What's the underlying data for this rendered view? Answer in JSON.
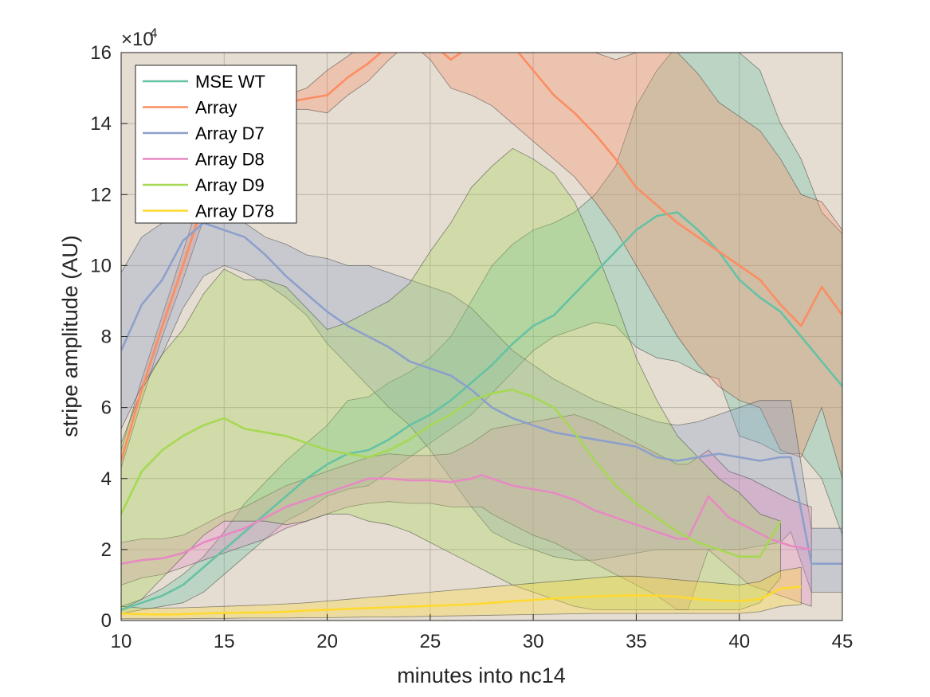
{
  "chart_data": {
    "type": "area",
    "xlabel": "minutes into nc14",
    "ylabel": "stripe amplitude (AU)",
    "xlim": [
      10,
      45
    ],
    "ylim": [
      0,
      160000
    ],
    "xticks": [
      10,
      15,
      20,
      25,
      30,
      35,
      40,
      45
    ],
    "yticks": [
      0,
      20000,
      40000,
      60000,
      80000,
      100000,
      120000,
      140000,
      160000
    ],
    "ytick_labels": [
      "0",
      "2",
      "4",
      "6",
      "8",
      "10",
      "12",
      "14",
      "16"
    ],
    "y_exponent_label": "×10",
    "y_exponent_power": "4",
    "grid": true,
    "legend_position": "top-left",
    "background_color": "#E5DDD1",
    "series": [
      {
        "name": "MSE WT",
        "color": "#66C2A5",
        "x": [
          10,
          11,
          12,
          13,
          14,
          15,
          16,
          17,
          18,
          19,
          20,
          21,
          22,
          23,
          24,
          25,
          26,
          27,
          28,
          29,
          30,
          31,
          32,
          33,
          34,
          35,
          36,
          37,
          38,
          39,
          40,
          41,
          42,
          43,
          44,
          45
        ],
        "y": [
          3000,
          5000,
          7000,
          10000,
          15000,
          20000,
          25000,
          30000,
          35000,
          40000,
          44000,
          47000,
          48000,
          51000,
          55000,
          58000,
          62000,
          67000,
          72000,
          78000,
          83000,
          86000,
          92000,
          98000,
          104000,
          110000,
          114000,
          115000,
          110000,
          104000,
          96000,
          91000,
          87000,
          80000,
          73000,
          66000
        ],
        "lower": [
          2000,
          3000,
          4000,
          5000,
          8000,
          13000,
          18000,
          23000,
          28000,
          31000,
          35000,
          37000,
          38000,
          42000,
          46000,
          50000,
          54000,
          58000,
          64000,
          70000,
          76000,
          80000,
          82000,
          84000,
          83000,
          77000,
          74000,
          73000,
          70000,
          68000,
          52000,
          50000,
          47000,
          47000,
          40000,
          24000
        ],
        "upper": [
          4000,
          6000,
          9000,
          13000,
          18000,
          25000,
          33000,
          39000,
          45000,
          50000,
          55000,
          62000,
          63000,
          67000,
          70000,
          74000,
          80000,
          90000,
          100000,
          106000,
          110000,
          112000,
          115000,
          120000,
          128000,
          145000,
          155000,
          162000,
          160000,
          160000,
          160000,
          155000,
          140000,
          130000,
          115000,
          109000
        ]
      },
      {
        "name": "Array",
        "color": "#FC8D62",
        "x": [
          10,
          11,
          12,
          13,
          14,
          15,
          16,
          17,
          18,
          19,
          20,
          21,
          22,
          23,
          24,
          25,
          26,
          27,
          28,
          29,
          30,
          31,
          32,
          33,
          34,
          35,
          36,
          37,
          38,
          39,
          40,
          41,
          42,
          43,
          44,
          45
        ],
        "y": [
          45000,
          65000,
          83000,
          100000,
          118000,
          135000,
          143000,
          145000,
          146000,
          147000,
          148000,
          153000,
          157000,
          162000,
          168000,
          163000,
          158000,
          162000,
          166000,
          162000,
          155000,
          148000,
          143000,
          137000,
          130000,
          122000,
          117000,
          112000,
          108000,
          104000,
          100000,
          96000,
          89000,
          83000,
          94000,
          86000
        ],
        "lower": [
          43000,
          62000,
          80000,
          96000,
          113000,
          128000,
          138000,
          142000,
          144000,
          144000,
          143000,
          148000,
          152000,
          158000,
          163000,
          158000,
          150000,
          148000,
          145000,
          140000,
          135000,
          130000,
          125000,
          118000,
          110000,
          100000,
          90000,
          80000,
          72000,
          66000,
          62000,
          60000,
          48000,
          46000,
          60000,
          40000
        ],
        "upper": [
          48000,
          68000,
          86000,
          104000,
          122000,
          141000,
          148000,
          149000,
          148000,
          150000,
          155000,
          159000,
          163000,
          168000,
          170000,
          170000,
          168000,
          170000,
          170000,
          168000,
          168000,
          166000,
          164000,
          160000,
          158000,
          160000,
          160000,
          160000,
          154000,
          146000,
          142000,
          138000,
          130000,
          120000,
          118000,
          110000
        ]
      },
      {
        "name": "Array D7",
        "color": "#8DA0CB",
        "x": [
          10,
          11,
          12,
          13,
          14,
          15,
          16,
          17,
          18,
          19,
          20,
          21,
          22,
          23,
          24,
          25,
          26,
          27,
          28,
          29,
          30,
          31,
          32,
          33,
          34,
          35,
          36,
          37,
          38,
          39,
          40,
          41,
          42,
          42.5,
          43.5,
          45
        ],
        "y": [
          76000,
          89000,
          96000,
          107000,
          112000,
          110000,
          108000,
          103000,
          97000,
          92000,
          87000,
          83000,
          80000,
          77000,
          73000,
          71000,
          69000,
          65000,
          60000,
          57000,
          55000,
          53000,
          52000,
          51000,
          50000,
          49000,
          46000,
          45000,
          46000,
          47000,
          46000,
          45000,
          46000,
          46000,
          16000,
          16000
        ],
        "lower": [
          54000,
          66000,
          75000,
          88000,
          97000,
          100000,
          98000,
          95000,
          91000,
          86000,
          78000,
          72000,
          66000,
          60000,
          55000,
          48000,
          40000,
          32000,
          25000,
          22000,
          20000,
          18000,
          17000,
          17000,
          18000,
          19000,
          20000,
          20000,
          20000,
          20000,
          20000,
          21000,
          22000,
          25000,
          8000,
          8000
        ],
        "upper": [
          98000,
          108000,
          112000,
          116000,
          116000,
          113000,
          112000,
          108000,
          106000,
          103000,
          102000,
          100000,
          100000,
          98000,
          96000,
          94000,
          92000,
          88000,
          82000,
          76000,
          72000,
          68000,
          65000,
          62000,
          60000,
          58000,
          56000,
          55000,
          56000,
          58000,
          60000,
          62000,
          62000,
          62000,
          26000,
          26000
        ]
      },
      {
        "name": "Array D8",
        "color": "#E78AC3",
        "x": [
          10,
          11,
          12,
          13,
          14,
          15,
          16,
          17,
          18,
          19,
          20,
          21,
          22,
          23,
          24,
          25,
          26,
          27,
          27.5,
          28,
          29,
          30,
          31,
          32,
          33,
          34,
          35,
          36,
          37,
          37.5,
          38.5,
          39.5,
          40.5,
          41.5,
          42.5,
          43.5
        ],
        "y": [
          16000,
          17000,
          17500,
          19000,
          22000,
          24000,
          26000,
          29000,
          32000,
          34000,
          36000,
          38000,
          40000,
          40000,
          39500,
          39500,
          39000,
          40000,
          41000,
          40000,
          38000,
          37000,
          36000,
          34000,
          31000,
          29000,
          27000,
          25000,
          23000,
          23000,
          35000,
          29000,
          26000,
          23000,
          21000,
          20000
        ],
        "lower": [
          10000,
          12000,
          13000,
          15000,
          17000,
          19000,
          21000,
          23000,
          26000,
          28000,
          30000,
          32000,
          33000,
          33500,
          33000,
          33000,
          32000,
          32000,
          32000,
          30000,
          27000,
          24000,
          22000,
          19000,
          16000,
          13000,
          10000,
          7000,
          3000,
          3000,
          20000,
          15000,
          10000,
          8000,
          6000,
          4000
        ],
        "upper": [
          22000,
          23000,
          23000,
          24000,
          27000,
          30000,
          32000,
          35000,
          38000,
          40000,
          42000,
          44000,
          46000,
          47000,
          46500,
          46500,
          47000,
          50000,
          52000,
          54000,
          55000,
          56000,
          57000,
          58000,
          56000,
          53000,
          50000,
          47000,
          44000,
          44000,
          48000,
          42000,
          40000,
          37000,
          34000,
          32000
        ]
      },
      {
        "name": "Array D9",
        "color": "#A6D854",
        "x": [
          10,
          11,
          12,
          13,
          14,
          15,
          16,
          17,
          18,
          19,
          20,
          21,
          22,
          23,
          24,
          25,
          26,
          27,
          28,
          29,
          30,
          31,
          32,
          33,
          34,
          35,
          36,
          37,
          38,
          39,
          40,
          41,
          42
        ],
        "y": [
          30000,
          42000,
          48000,
          52000,
          55000,
          57000,
          54000,
          53000,
          52000,
          50000,
          48000,
          47000,
          46000,
          48000,
          51000,
          55000,
          58000,
          62000,
          64000,
          65000,
          63000,
          60000,
          53000,
          45000,
          38000,
          33000,
          29000,
          25000,
          22000,
          20000,
          18000,
          18000,
          28000
        ],
        "lower": [
          3000,
          6000,
          12000,
          18000,
          24000,
          28000,
          28000,
          28000,
          27000,
          28000,
          30000,
          30000,
          28000,
          27000,
          25000,
          22000,
          19000,
          16000,
          13000,
          10000,
          8000,
          6000,
          4000,
          3000,
          3000,
          3000,
          3000,
          3000,
          3000,
          3000,
          3000,
          5000,
          12000
        ],
        "upper": [
          50000,
          65000,
          75000,
          82000,
          92000,
          99000,
          96000,
          96000,
          94000,
          88000,
          82000,
          84000,
          87000,
          90000,
          95000,
          104000,
          112000,
          122000,
          128000,
          133000,
          130000,
          126000,
          118000,
          105000,
          90000,
          74000,
          62000,
          52000,
          46000,
          40000,
          36000,
          30000,
          28000
        ]
      },
      {
        "name": "Array D78",
        "color": "#FFD92F",
        "x": [
          10,
          11,
          12,
          13,
          14,
          15,
          16,
          17,
          18,
          19,
          20,
          21,
          22,
          23,
          24,
          25,
          26,
          27,
          28,
          29,
          30,
          31,
          32,
          33,
          34,
          35,
          36,
          37,
          38,
          39,
          40,
          41,
          42,
          43
        ],
        "y": [
          2000,
          1800,
          1700,
          1800,
          2000,
          2100,
          2200,
          2300,
          2500,
          2800,
          3000,
          3300,
          3500,
          3700,
          3900,
          4100,
          4300,
          4600,
          5000,
          5400,
          5800,
          6200,
          6500,
          6800,
          7000,
          7100,
          7000,
          6700,
          6000,
          5600,
          5500,
          6000,
          9000,
          9500
        ],
        "lower": [
          500,
          500,
          500,
          500,
          600,
          600,
          700,
          700,
          700,
          800,
          800,
          900,
          1000,
          1000,
          1100,
          1200,
          1300,
          1400,
          1500,
          1600,
          1700,
          1800,
          1900,
          2000,
          2000,
          2000,
          2000,
          2000,
          2000,
          2000,
          2000,
          2500,
          4000,
          4500
        ],
        "upper": [
          4000,
          3500,
          3500,
          3600,
          3800,
          4000,
          4200,
          4400,
          4700,
          5000,
          5500,
          6000,
          6500,
          7000,
          7500,
          8000,
          8500,
          9000,
          9500,
          10000,
          10500,
          11000,
          11500,
          12000,
          12500,
          12500,
          12000,
          11500,
          11000,
          10500,
          10000,
          11000,
          14000,
          15000
        ]
      }
    ]
  }
}
